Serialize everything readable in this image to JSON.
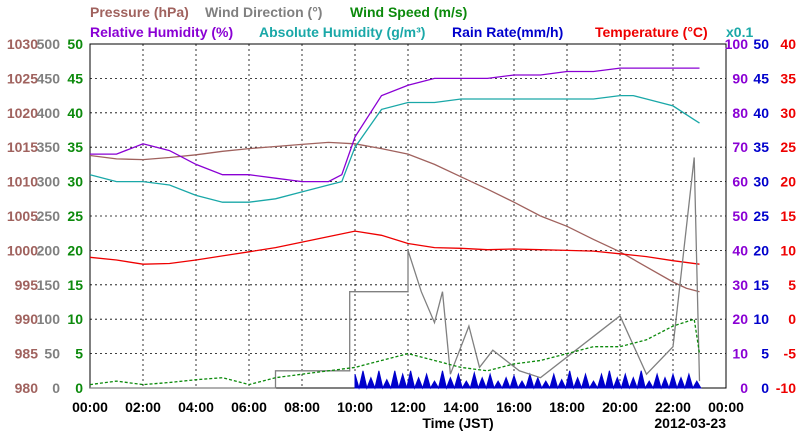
{
  "chart_data": {
    "type": "line",
    "title": "",
    "xlabel": "Time (JST)",
    "date_label": "2012-03-23",
    "x_ticks": [
      "00:00",
      "02:00",
      "04:00",
      "06:00",
      "08:00",
      "10:00",
      "12:00",
      "14:00",
      "16:00",
      "18:00",
      "20:00",
      "22:00",
      "00:00"
    ],
    "x_range_hours": [
      0,
      24
    ],
    "grid": true,
    "legend": {
      "row1": [
        {
          "text": "Pressure (hPa)",
          "color": "#a0625e"
        },
        {
          "text": "Wind Direction (°)",
          "color": "#808080"
        },
        {
          "text": "Wind Speed (m/s)",
          "color": "#0c8a0c"
        }
      ],
      "row2": [
        {
          "text": "Relative Humidity (%)",
          "color": "#8a00d4"
        },
        {
          "text": "Absolute Humidity (g/m³)",
          "color": "#1aa8a8"
        },
        {
          "text": "Rain Rate(mm/h)",
          "color": "#0000cc"
        },
        {
          "text": "Temperature (°C)",
          "color": "#ee0000"
        }
      ],
      "note": {
        "text": "x0.1",
        "color": "#1aa8a8"
      }
    },
    "axes": [
      {
        "id": "pressure",
        "side": "left",
        "color": "#a0625e",
        "ylim": [
          980,
          1030
        ],
        "ticks": [
          "980",
          "985",
          "990",
          "995",
          "1000",
          "1005",
          "1010",
          "1015",
          "1020",
          "1025",
          "1030"
        ]
      },
      {
        "id": "wind_direction",
        "side": "left",
        "color": "#808080",
        "ylim": [
          0,
          500
        ],
        "ticks": [
          "0",
          "50",
          "100",
          "150",
          "200",
          "250",
          "300",
          "350",
          "400",
          "450",
          "500"
        ]
      },
      {
        "id": "wind_speed",
        "side": "left",
        "color": "#0c8a0c",
        "ylim": [
          0,
          50
        ],
        "ticks": [
          "0",
          "5",
          "10",
          "15",
          "20",
          "25",
          "30",
          "35",
          "40",
          "45",
          "50"
        ]
      },
      {
        "id": "humidity",
        "side": "right",
        "color": "#8a00d4",
        "ylim": [
          0,
          100
        ],
        "ticks": [
          "0",
          "10",
          "20",
          "30",
          "40",
          "50",
          "60",
          "70",
          "80",
          "90",
          "100"
        ]
      },
      {
        "id": "rain_rate",
        "side": "right",
        "color": "#0000cc",
        "ylim": [
          0,
          50
        ],
        "ticks": [
          "0",
          "5",
          "10",
          "15",
          "20",
          "25",
          "30",
          "35",
          "40",
          "45",
          "50"
        ]
      },
      {
        "id": "temperature",
        "side": "right",
        "color": "#ee0000",
        "ylim": [
          -10,
          40
        ],
        "ticks": [
          "-10",
          "-5",
          "0",
          "5",
          "10",
          "15",
          "20",
          "25",
          "30",
          "35",
          "40"
        ]
      }
    ],
    "series": [
      {
        "name": "Pressure (hPa)",
        "axis": "pressure",
        "color": "#a0625e",
        "x": [
          0,
          1,
          2,
          3,
          4,
          5,
          6,
          7,
          8,
          9,
          10,
          11,
          12,
          13,
          14,
          15,
          16,
          17,
          18,
          19,
          20,
          21,
          22,
          22.5,
          23
        ],
        "y": [
          1013.8,
          1013.3,
          1013.2,
          1013.5,
          1013.9,
          1014.4,
          1014.8,
          1015.1,
          1015.4,
          1015.7,
          1015.5,
          1014.8,
          1014.0,
          1012.5,
          1010.7,
          1008.9,
          1007.0,
          1005.0,
          1003.5,
          1001.6,
          999.8,
          997.6,
          995.4,
          994.5,
          994.0
        ]
      },
      {
        "name": "Relative Humidity (%)",
        "axis": "humidity",
        "color": "#8a00d4",
        "x": [
          0,
          1,
          2,
          3,
          4,
          5,
          6,
          7,
          8,
          9,
          9.5,
          10,
          11,
          12,
          13,
          14,
          15,
          16,
          17,
          18,
          19,
          20,
          21,
          22,
          23
        ],
        "y": [
          68,
          68,
          71,
          69,
          65,
          62,
          62,
          61,
          60,
          60,
          62,
          73,
          85,
          88,
          90,
          90,
          90,
          91,
          91,
          92,
          92,
          93,
          93,
          93,
          93
        ]
      },
      {
        "name": "Absolute Humidity (g/m³)",
        "axis": "humidity",
        "color": "#1aa8a8",
        "x": [
          0,
          1,
          2,
          3,
          4,
          5,
          6,
          7,
          8,
          9,
          9.5,
          10,
          11,
          12,
          13,
          14,
          15,
          16,
          17,
          18,
          19,
          20,
          20.5,
          21,
          22,
          22.8,
          23
        ],
        "y": [
          62,
          60,
          60,
          59,
          56,
          54,
          54,
          55,
          57,
          59,
          60,
          70,
          81,
          83,
          83,
          84,
          84,
          84,
          84,
          84,
          84,
          85,
          85,
          84,
          82,
          78,
          77
        ]
      },
      {
        "name": "Temperature (°C)",
        "axis": "temperature",
        "color": "#ee0000",
        "x": [
          0,
          1,
          2,
          3,
          4,
          5,
          6,
          7,
          8,
          9,
          10,
          11,
          12,
          13,
          14,
          15,
          16,
          17,
          18,
          19,
          20,
          21,
          22,
          23
        ],
        "y": [
          9.0,
          8.6,
          8.0,
          8.1,
          8.6,
          9.2,
          9.8,
          10.4,
          11.2,
          12.0,
          12.8,
          12.2,
          11.0,
          10.4,
          10.3,
          10.1,
          10.2,
          10.1,
          10.0,
          9.9,
          9.5,
          9.1,
          8.5,
          8.0
        ]
      },
      {
        "name": "Wind Direction (°)",
        "axis": "wind_direction",
        "color": "#808080",
        "step": true,
        "x": [
          0,
          7,
          7,
          9.8,
          9.8,
          12.0,
          12.0,
          12.5,
          12.5,
          13.0,
          13.0,
          13.3,
          13.3,
          13.6,
          13.6,
          14.3,
          14.3,
          14.7,
          14.7,
          15.2,
          15.2,
          16.2,
          16.2,
          17.0,
          17.0,
          20.0,
          20.0,
          21.0,
          21.0,
          22.0,
          22.0,
          22.8,
          22.8,
          23.0
        ],
        "y": [
          0,
          0,
          25,
          25,
          140,
          140,
          200,
          140,
          140,
          95,
          95,
          140,
          140,
          20,
          20,
          90,
          90,
          30,
          30,
          55,
          55,
          25,
          25,
          15,
          15,
          105,
          105,
          20,
          20,
          60,
          60,
          335,
          335,
          10
        ]
      },
      {
        "name": "Wind Speed (m/s)",
        "axis": "wind_speed",
        "color": "#0c8a0c",
        "dashed": true,
        "x": [
          0,
          1,
          2,
          3,
          4,
          5,
          6,
          7,
          8,
          9,
          10,
          11,
          12,
          13,
          14,
          15,
          16,
          17,
          18,
          19,
          20,
          21,
          22,
          22.8,
          23
        ],
        "y": [
          0.5,
          1.0,
          0.5,
          0.8,
          1.2,
          1.5,
          0.5,
          1.5,
          2.0,
          2.5,
          3.0,
          4.0,
          5.0,
          4.0,
          3.0,
          2.5,
          3.5,
          4.0,
          5.0,
          6.0,
          6.0,
          7.0,
          9.0,
          10.0,
          5.0
        ]
      }
    ],
    "rain_rate": {
      "name": "Rain Rate(mm/h)",
      "axis": "rain_rate",
      "color": "#0000cc",
      "x": [
        10.0,
        10.3,
        10.6,
        10.9,
        11.2,
        11.5,
        11.8,
        12.1,
        12.4,
        12.7,
        13.0,
        13.3,
        13.6,
        13.9,
        14.2,
        14.5,
        14.8,
        15.1,
        15.4,
        15.7,
        16.0,
        16.3,
        16.6,
        16.9,
        17.2,
        17.5,
        17.8,
        18.1,
        18.4,
        18.7,
        19.0,
        19.3,
        19.6,
        19.9,
        20.2,
        20.5,
        20.8,
        21.1,
        21.4,
        21.7,
        22.0,
        22.3,
        22.6,
        22.9
      ],
      "y": [
        2.0,
        2.5,
        1.5,
        2.5,
        1.2,
        2.5,
        2.0,
        2.5,
        1.5,
        2.0,
        1.0,
        2.5,
        1.5,
        2.0,
        1.0,
        2.2,
        1.5,
        2.0,
        1.0,
        1.5,
        1.8,
        1.0,
        2.0,
        1.5,
        1.0,
        2.0,
        1.2,
        2.5,
        1.5,
        2.0,
        1.0,
        2.0,
        2.5,
        1.5,
        2.0,
        1.5,
        2.5,
        1.0,
        2.0,
        1.5,
        2.0,
        1.5,
        2.0,
        1.0
      ]
    }
  }
}
